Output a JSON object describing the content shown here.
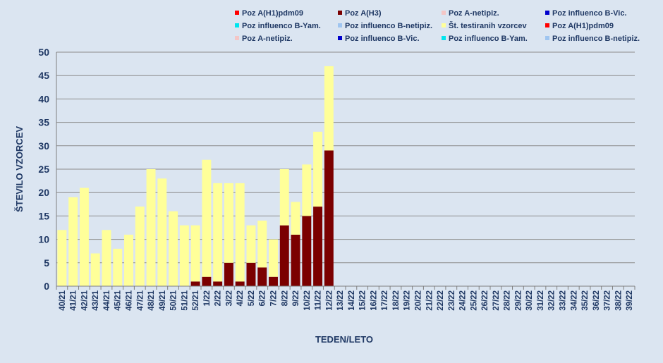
{
  "chart_data": {
    "type": "bar",
    "stacked": true,
    "xlabel": "TEDEN/LETO",
    "ylabel": "ŠTEVILO VZORCEV",
    "ylim": [
      0,
      50
    ],
    "yticks": [
      0,
      5,
      10,
      15,
      20,
      25,
      30,
      35,
      40,
      45,
      50
    ],
    "grid": true,
    "legend_position": "top",
    "categories": [
      "40/21",
      "41/21",
      "42/21",
      "43/21",
      "44/21",
      "45/21",
      "46/21",
      "47/21",
      "48/21",
      "49/21",
      "50/21",
      "51/21",
      "52/21",
      "1/22",
      "2/22",
      "3/22",
      "4/22",
      "5/22",
      "6/22",
      "7/22",
      "8/22",
      "9/22",
      "10/22",
      "11/22",
      "12/22",
      "13/22",
      "14/22",
      "15/22",
      "16/22",
      "17/22",
      "18/22",
      "19/22",
      "20/22",
      "21/22",
      "22/22",
      "23/22",
      "24/22",
      "25/22",
      "26/22",
      "27/22",
      "28/22",
      "29/22",
      "30/22",
      "31/22",
      "32/22",
      "33/22",
      "34/22",
      "35/22",
      "36/22",
      "37/22",
      "38/22",
      "39/22"
    ],
    "series": [
      {
        "name": "Poz A(H1)pdm09",
        "color": "#ff0000",
        "values": [
          0,
          0,
          0,
          0,
          0,
          0,
          0,
          0,
          0,
          0,
          0,
          0,
          0,
          0,
          0,
          0,
          0,
          0,
          0,
          0,
          0,
          0,
          0,
          0,
          0,
          0,
          0,
          0,
          0,
          0,
          0,
          0,
          0,
          0,
          0,
          0,
          0,
          0,
          0,
          0,
          0,
          0,
          0,
          0,
          0,
          0,
          0,
          0,
          0,
          0,
          0,
          0
        ]
      },
      {
        "name": "Poz A(H3)",
        "color": "#7b0000",
        "values": [
          0,
          0,
          0,
          0,
          0,
          0,
          0,
          0,
          0,
          0,
          0,
          0,
          1,
          2,
          1,
          5,
          1,
          5,
          4,
          2,
          13,
          11,
          15,
          17,
          29,
          0,
          0,
          0,
          0,
          0,
          0,
          0,
          0,
          0,
          0,
          0,
          0,
          0,
          0,
          0,
          0,
          0,
          0,
          0,
          0,
          0,
          0,
          0,
          0,
          0,
          0,
          0
        ]
      },
      {
        "name": "Poz A-netipiz.",
        "color": "#f4c6c6",
        "values": [
          0,
          0,
          0,
          0,
          0,
          0,
          0,
          0,
          0,
          0,
          0,
          0,
          0,
          0,
          0,
          0,
          0,
          0,
          0,
          0,
          0,
          0,
          0,
          0,
          0,
          0,
          0,
          0,
          0,
          0,
          0,
          0,
          0,
          0,
          0,
          0,
          0,
          0,
          0,
          0,
          0,
          0,
          0,
          0,
          0,
          0,
          0,
          0,
          0,
          0,
          0,
          0
        ]
      },
      {
        "name": "Poz influenco B-Vic.",
        "color": "#0000cc",
        "values": [
          0,
          0,
          0,
          0,
          0,
          0,
          0,
          0,
          0,
          0,
          0,
          0,
          0,
          0,
          0,
          0,
          0,
          0,
          0,
          0,
          0,
          0,
          0,
          0,
          0,
          0,
          0,
          0,
          0,
          0,
          0,
          0,
          0,
          0,
          0,
          0,
          0,
          0,
          0,
          0,
          0,
          0,
          0,
          0,
          0,
          0,
          0,
          0,
          0,
          0,
          0,
          0
        ]
      },
      {
        "name": "Poz influenco B-Yam.",
        "color": "#00e5ee",
        "values": [
          0,
          0,
          0,
          0,
          0,
          0,
          0,
          0,
          0,
          0,
          0,
          0,
          0,
          0,
          0,
          0,
          0,
          0,
          0,
          0,
          0,
          0,
          0,
          0,
          0,
          0,
          0,
          0,
          0,
          0,
          0,
          0,
          0,
          0,
          0,
          0,
          0,
          0,
          0,
          0,
          0,
          0,
          0,
          0,
          0,
          0,
          0,
          0,
          0,
          0,
          0,
          0
        ]
      },
      {
        "name": "Poz influenco B-netipiz.",
        "color": "#9fc5f0",
        "values": [
          0,
          0,
          0,
          0,
          0,
          0,
          0,
          0,
          0,
          0,
          0,
          0,
          0,
          0,
          0,
          0,
          0,
          0,
          0,
          0,
          0,
          0,
          0,
          0,
          0,
          0,
          0,
          0,
          0,
          0,
          0,
          0,
          0,
          0,
          0,
          0,
          0,
          0,
          0,
          0,
          0,
          0,
          0,
          0,
          0,
          0,
          0,
          0,
          0,
          0,
          0,
          0
        ]
      },
      {
        "name": "Št. testiranih vzorcev",
        "color": "#ffff99",
        "values": [
          12,
          19,
          21,
          7,
          12,
          8,
          11,
          17,
          25,
          23,
          16,
          13,
          12,
          25,
          21,
          17,
          21,
          8,
          10,
          8,
          12,
          7,
          11,
          16,
          18,
          0,
          0,
          0,
          0,
          0,
          0,
          0,
          0,
          0,
          0,
          0,
          0,
          0,
          0,
          0,
          0,
          0,
          0,
          0,
          0,
          0,
          0,
          0,
          0,
          0,
          0,
          0
        ]
      }
    ],
    "legend": [
      {
        "label": "Poz A(H1)pdm09",
        "color": "#ff0000"
      },
      {
        "label": "Poz A(H3)",
        "color": "#7b0000"
      },
      {
        "label": "Poz A-netipiz.",
        "color": "#f4c6c6"
      },
      {
        "label": "Poz influenco B-Vic.",
        "color": "#0000cc"
      },
      {
        "label": "Poz influenco B-Yam.",
        "color": "#00e5ee"
      },
      {
        "label": "Poz influenco B-netipiz.",
        "color": "#9fc5f0"
      },
      {
        "label": "Št. testiranih vzorcev",
        "color": "#ffff99"
      },
      {
        "label": "Poz A(H1)pdm09",
        "color": "#ff0000"
      },
      {
        "label": "Poz A-netipiz.",
        "color": "#f4c6c6"
      },
      {
        "label": "Poz influenco B-Vic.",
        "color": "#0000cc"
      },
      {
        "label": "Poz influenco B-Yam.",
        "color": "#00e5ee"
      },
      {
        "label": "Poz influenco B-netipiz.",
        "color": "#9fc5f0"
      }
    ]
  }
}
